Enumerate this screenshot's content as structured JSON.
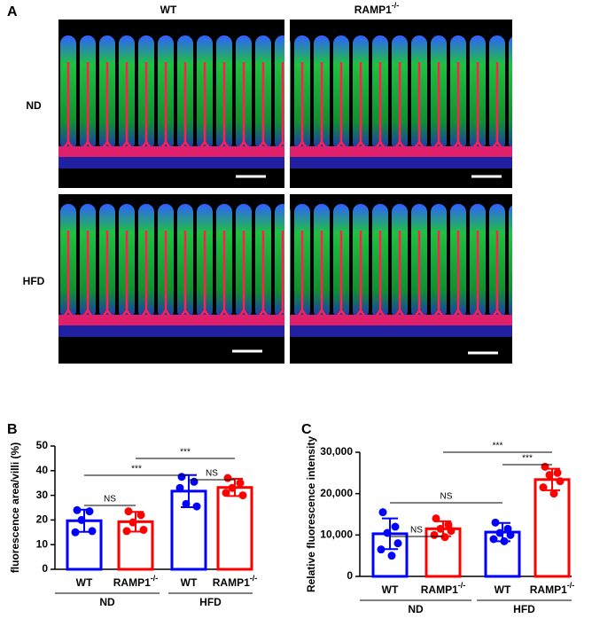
{
  "panel_a": {
    "label": "A",
    "columns": [
      {
        "text": "WT"
      },
      {
        "text": "RAMP1",
        "sup": "-/-"
      }
    ],
    "rows": [
      "ND",
      "HFD"
    ]
  },
  "chart_data": [
    {
      "type": "bar",
      "panel": "B",
      "ylabel": "fluorescence area/villi (%)",
      "categories": [
        "WT",
        "RAMP1",
        "WT",
        "RAMP1"
      ],
      "category_superscripts": [
        null,
        "-/-",
        null,
        "-/-"
      ],
      "groups": [
        "ND",
        "HFD"
      ],
      "colors": [
        "#0000ff",
        "#ff0000",
        "#0000ff",
        "#ff0000"
      ],
      "values": [
        19.7,
        19.3,
        31.7,
        33.2
      ],
      "errors": [
        4.5,
        4,
        6.5,
        3.5
      ],
      "points": [
        [
          24,
          23.5,
          20,
          15.5,
          15
        ],
        [
          23.5,
          22,
          19,
          16,
          15.5
        ],
        [
          37.5,
          35.5,
          26.5,
          25.5,
          33
        ],
        [
          37,
          35,
          33,
          30,
          31
        ]
      ],
      "ylim": [
        0,
        50
      ],
      "yticks": [
        0,
        10,
        20,
        30,
        40,
        50
      ],
      "annotations": [
        {
          "label": "NS",
          "from": 0,
          "to": 1
        },
        {
          "label": "***",
          "from": 0,
          "to": 2
        },
        {
          "label": "NS",
          "from": 2,
          "to": 3
        },
        {
          "label": "***",
          "from": 1,
          "to": 3
        }
      ]
    },
    {
      "type": "bar",
      "panel": "C",
      "ylabel": "Relative fluorescence intensity",
      "categories": [
        "WT",
        "RAMP1",
        "WT",
        "RAMP1"
      ],
      "category_superscripts": [
        null,
        "-/-",
        null,
        "-/-"
      ],
      "groups": [
        "ND",
        "HFD"
      ],
      "colors": [
        "#0000ff",
        "#ff0000",
        "#0000ff",
        "#ff0000"
      ],
      "values": [
        10300,
        11500,
        10700,
        23400
      ],
      "errors": [
        3700,
        1800,
        2200,
        2600
      ],
      "points": [
        [
          15500,
          12000,
          10500,
          8000,
          6500,
          5000
        ],
        [
          14000,
          12500,
          11500,
          11000,
          10000,
          9500
        ],
        [
          13000,
          11500,
          10500,
          10000,
          9000,
          8500
        ],
        [
          26500,
          25000,
          24500,
          23000,
          21500,
          20000
        ]
      ],
      "ylim": [
        0,
        30000
      ],
      "yticks": [
        0,
        {
          "value": 10000,
          "label": "10,000"
        },
        {
          "value": 20000,
          "label": "20,000"
        },
        {
          "value": 30000,
          "label": "30,000"
        }
      ],
      "annotations": [
        {
          "label": "NS",
          "from": 0,
          "to": 1
        },
        {
          "label": "NS",
          "from": 0,
          "to": 2
        },
        {
          "label": "***",
          "from": 2,
          "to": 3
        },
        {
          "label": "***",
          "from": 1,
          "to": 3
        }
      ]
    }
  ]
}
